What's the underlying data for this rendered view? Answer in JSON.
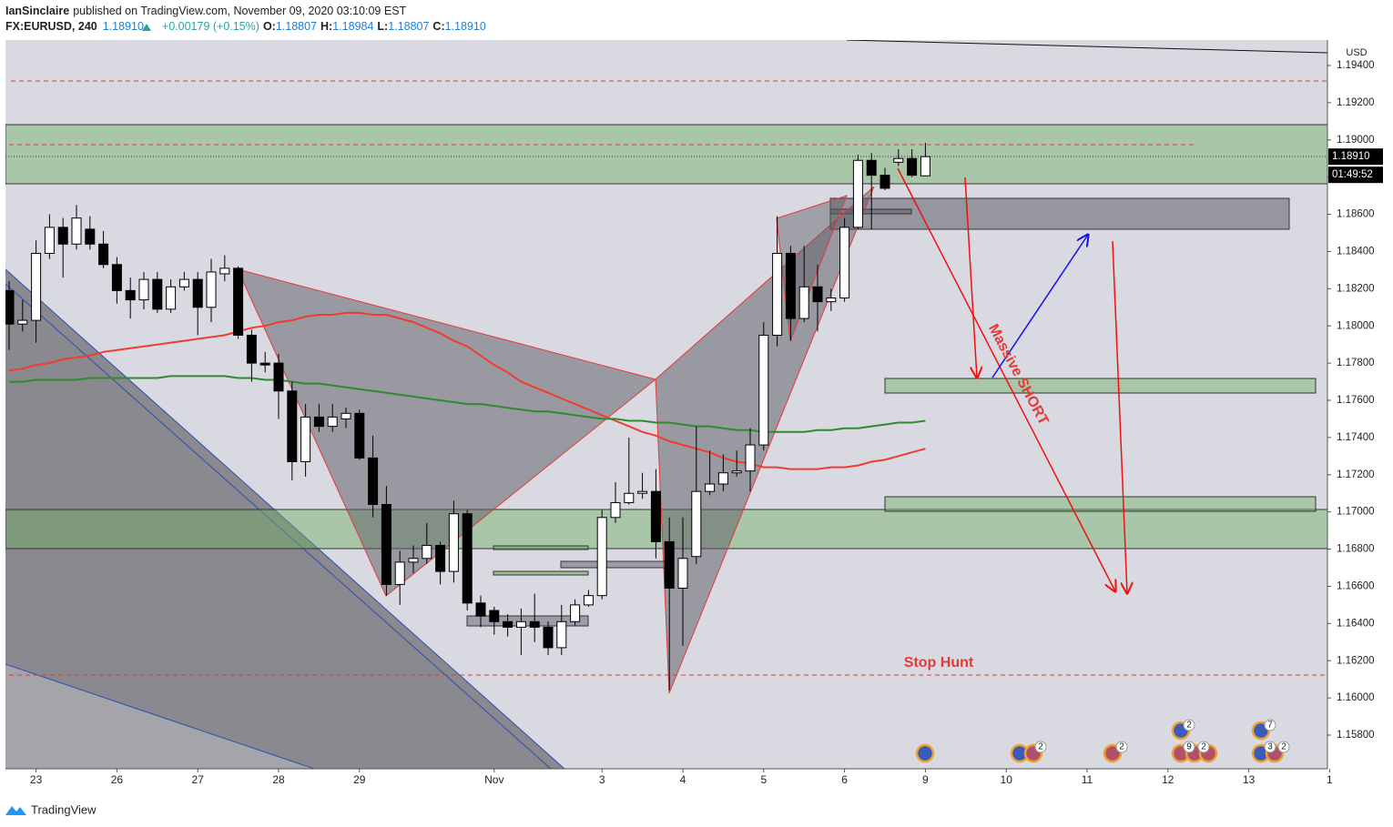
{
  "header": {
    "author": "IanSinclaire",
    "published": "published on TradingView.com, November 09, 2020 03:10:09 EST",
    "symbol": "FX:EURUSD, 240",
    "last": "1.18910",
    "change": "+0.00179 (+0.15%)",
    "ohlc": [
      {
        "key": "O:",
        "value": "1.18807"
      },
      {
        "key": "H:",
        "value": "1.18984"
      },
      {
        "key": "L:",
        "value": "1.18807"
      },
      {
        "key": "C:",
        "value": "1.18910"
      }
    ]
  },
  "chart_data": {
    "type": "candlestick",
    "currency": "USD",
    "categories": [
      null,
      null,
      "23",
      null,
      null,
      null,
      null,
      null,
      "26",
      null,
      null,
      null,
      null,
      null,
      "27",
      null,
      null,
      null,
      null,
      null,
      "28",
      null,
      null,
      null,
      null,
      null,
      "29",
      null,
      null,
      null,
      null,
      null,
      null,
      null,
      null,
      null,
      "Nov",
      null,
      null,
      null,
      null,
      null,
      null,
      null,
      "3",
      null,
      null,
      null,
      null,
      null,
      "4",
      null,
      null,
      null,
      null,
      null,
      "5",
      null,
      null,
      null,
      null,
      null,
      "6",
      null,
      null,
      null,
      null,
      null,
      "9",
      null,
      null,
      null,
      null,
      null,
      "10",
      null,
      null,
      null,
      null,
      null,
      "11",
      null,
      null,
      null,
      null,
      null,
      "12",
      null,
      null,
      null,
      null,
      null,
      "13",
      null,
      null,
      null,
      null,
      null,
      "1"
    ],
    "open": [
      1.1819,
      1.1801,
      1.1803,
      1.1839,
      1.1853,
      1.1844,
      1.1852,
      1.1844,
      1.1833,
      1.1819,
      1.1814,
      1.1825,
      1.1809,
      1.1821,
      1.1825,
      1.181,
      1.1828,
      1.1831,
      1.1795,
      1.178,
      1.178,
      1.1765,
      1.1727,
      1.1751,
      1.1746,
      1.175,
      1.1753,
      1.1729,
      1.1704,
      1.1661,
      1.1673,
      1.1675,
      1.1682,
      1.1668,
      1.1699,
      1.1651,
      1.1647,
      1.1641,
      1.1638,
      1.1641,
      1.1638,
      1.1627,
      1.1641,
      1.165,
      1.1655,
      1.1697,
      1.1705,
      1.171,
      1.1711,
      1.1684,
      1.1659,
      1.1676,
      1.1711,
      1.1715,
      1.1721,
      1.1722,
      1.1736,
      1.1795,
      1.1839,
      1.1804,
      1.1821,
      1.1813,
      1.1815,
      1.1853,
      1.1889,
      1.1881,
      1.1888,
      1.189,
      1.18807,
      null,
      null,
      null,
      null,
      null,
      null,
      null,
      null,
      null,
      null,
      null,
      null,
      null,
      null,
      null,
      null,
      null,
      null,
      null,
      null,
      null,
      null,
      null,
      null,
      null,
      null,
      null,
      null,
      null,
      null
    ],
    "high": [
      1.1824,
      1.1814,
      1.1846,
      1.186,
      1.1858,
      1.1865,
      1.1859,
      1.1851,
      1.1837,
      1.1826,
      1.1829,
      1.1829,
      1.1825,
      1.1829,
      1.1829,
      1.1836,
      1.1838,
      1.1832,
      1.1798,
      1.1786,
      1.1785,
      1.177,
      1.1758,
      1.1758,
      1.1758,
      1.1756,
      1.1755,
      1.1741,
      1.1714,
      1.1679,
      1.1682,
      1.1694,
      1.1684,
      1.1706,
      1.1701,
      1.1655,
      1.1649,
      1.1645,
      1.1648,
      1.1656,
      1.1641,
      1.165,
      1.1653,
      1.1658,
      1.1701,
      1.1716,
      1.174,
      1.1721,
      1.1723,
      1.1697,
      1.1697,
      1.1746,
      1.1733,
      1.1731,
      1.1733,
      1.1745,
      1.1802,
      1.1859,
      1.1843,
      1.1843,
      1.1833,
      1.182,
      1.1858,
      1.1892,
      1.1893,
      1.1885,
      1.1895,
      1.1895,
      1.18984,
      null,
      null,
      null,
      null,
      null,
      null,
      null,
      null,
      null,
      null,
      null,
      null,
      null,
      null,
      null,
      null,
      null,
      null,
      null,
      null,
      null,
      null,
      null,
      null,
      null,
      null,
      null,
      null,
      null,
      null
    ],
    "low": [
      1.1787,
      1.1797,
      1.1791,
      1.1836,
      1.1826,
      1.1841,
      1.1841,
      1.1831,
      1.1812,
      1.1804,
      1.1809,
      1.1807,
      1.1807,
      1.1819,
      1.1795,
      1.1802,
      1.1824,
      1.1793,
      1.177,
      1.1775,
      1.175,
      1.1717,
      1.1719,
      1.1743,
      1.1743,
      1.1745,
      1.1728,
      1.1697,
      1.1655,
      1.165,
      1.1667,
      1.1672,
      1.1661,
      1.1662,
      1.1647,
      1.1638,
      1.1634,
      1.1633,
      1.1623,
      1.163,
      1.1623,
      1.1623,
      1.1639,
      1.1649,
      1.1653,
      1.1694,
      1.1704,
      1.1707,
      1.1675,
      1.1604,
      1.1628,
      1.1672,
      1.1709,
      1.1711,
      1.1719,
      1.1711,
      1.1733,
      1.1789,
      1.1792,
      1.1802,
      1.1797,
      1.1808,
      1.1813,
      1.1852,
      1.1852,
      1.1873,
      1.1886,
      1.188,
      1.18807,
      null,
      null,
      null,
      null,
      null,
      null,
      null,
      null,
      null,
      null,
      null,
      null,
      null,
      null,
      null,
      null,
      null,
      null,
      null,
      null,
      null,
      null,
      null,
      null,
      null,
      null,
      null,
      null,
      null,
      null
    ],
    "close": [
      1.1801,
      1.1803,
      1.1839,
      1.1853,
      1.1844,
      1.1858,
      1.1844,
      1.1833,
      1.1819,
      1.1814,
      1.1825,
      1.1809,
      1.1821,
      1.1825,
      1.181,
      1.1829,
      1.1831,
      1.1795,
      1.178,
      1.1779,
      1.1765,
      1.1727,
      1.1751,
      1.1746,
      1.1751,
      1.1753,
      1.1729,
      1.1704,
      1.1661,
      1.1673,
      1.1675,
      1.1682,
      1.1668,
      1.1699,
      1.1651,
      1.1644,
      1.1641,
      1.1638,
      1.1641,
      1.1638,
      1.1627,
      1.1641,
      1.165,
      1.1655,
      1.1697,
      1.1705,
      1.171,
      1.1711,
      1.1684,
      1.1659,
      1.1675,
      1.1711,
      1.1715,
      1.1721,
      1.1722,
      1.1736,
      1.1795,
      1.1839,
      1.1804,
      1.1821,
      1.1813,
      1.1815,
      1.1853,
      1.1889,
      1.1881,
      1.1874,
      1.189,
      1.1881,
      1.1891,
      null,
      null,
      null,
      null,
      null,
      null,
      null,
      null,
      null,
      null,
      null,
      null,
      null,
      null,
      null,
      null,
      null,
      null,
      null,
      null,
      null,
      null,
      null,
      null,
      null,
      null,
      null,
      null,
      null,
      null
    ],
    "up_color": "#ffffff",
    "down_color": "#000000",
    "moving_averages": [
      {
        "color": "#f23b2f",
        "values": [
          1.1776,
          1.1777,
          1.1779,
          1.178,
          1.1782,
          1.1783,
          1.1784,
          1.1786,
          1.1787,
          1.1788,
          1.1789,
          1.179,
          1.1791,
          1.1792,
          1.1793,
          1.1794,
          1.1795,
          1.1797,
          1.1799,
          1.18,
          1.1802,
          1.1803,
          1.1805,
          1.1806,
          1.1806,
          1.1807,
          1.1807,
          1.1806,
          1.1806,
          1.1804,
          1.1802,
          1.1799,
          1.1796,
          1.1792,
          1.1789,
          1.1784,
          1.1779,
          1.1775,
          1.177,
          1.1767,
          1.1764,
          1.1761,
          1.1758,
          1.1755,
          1.1752,
          1.1749,
          1.1746,
          1.1743,
          1.1741,
          1.1738,
          1.1736,
          1.1734,
          1.1732,
          1.1729,
          1.1727,
          1.1726,
          1.1724,
          1.1724,
          1.1723,
          1.1723,
          1.1723,
          1.1724,
          1.1724,
          1.1725,
          1.1727,
          1.1728,
          1.173,
          1.1732,
          1.1734,
          null,
          null,
          null,
          null,
          null,
          null,
          null,
          null,
          null,
          null,
          null,
          null,
          null,
          null,
          null,
          null,
          null,
          null,
          null,
          null,
          null,
          null,
          null,
          null,
          null,
          null,
          null,
          null,
          null,
          null
        ]
      },
      {
        "color": "#2e8b2e",
        "values": [
          1.177,
          1.177,
          1.1771,
          1.1771,
          1.1771,
          1.1771,
          1.1772,
          1.1772,
          1.1772,
          1.1772,
          1.1772,
          1.1772,
          1.1773,
          1.1773,
          1.1773,
          1.1773,
          1.1773,
          1.1772,
          1.1772,
          1.1771,
          1.1771,
          1.177,
          1.1769,
          1.1769,
          1.1768,
          1.1767,
          1.1766,
          1.1765,
          1.1764,
          1.1763,
          1.1762,
          1.1761,
          1.176,
          1.1759,
          1.1758,
          1.1758,
          1.1757,
          1.1756,
          1.1755,
          1.1754,
          1.1754,
          1.1753,
          1.1752,
          1.1751,
          1.175,
          1.175,
          1.1749,
          1.1749,
          1.1748,
          1.1748,
          1.1747,
          1.1746,
          1.1746,
          1.1745,
          1.1744,
          1.1744,
          1.1743,
          1.1743,
          1.1743,
          1.1743,
          1.1744,
          1.1744,
          1.1745,
          1.1745,
          1.1746,
          1.1747,
          1.1748,
          1.1748,
          1.1749,
          null,
          null,
          null,
          null,
          null,
          null,
          null,
          null,
          null,
          null,
          null,
          null,
          null,
          null,
          null,
          null,
          null,
          null,
          null,
          null,
          null,
          null,
          null,
          null,
          null,
          null,
          null,
          null,
          null,
          null
        ]
      }
    ],
    "ylim": [
      1.15619,
      1.19537
    ],
    "yticks": [
      {
        "value": 1.158,
        "label": "1.15800"
      },
      {
        "value": 1.16,
        "label": "1.16000"
      },
      {
        "value": 1.162,
        "label": "1.16200"
      },
      {
        "value": 1.164,
        "label": "1.16400"
      },
      {
        "value": 1.166,
        "label": "1.16600"
      },
      {
        "value": 1.168,
        "label": "1.16800"
      },
      {
        "value": 1.17,
        "label": "1.17000"
      },
      {
        "value": 1.172,
        "label": "1.17200"
      },
      {
        "value": 1.174,
        "label": "1.17400"
      },
      {
        "value": 1.176,
        "label": "1.17600"
      },
      {
        "value": 1.178,
        "label": "1.17800"
      },
      {
        "value": 1.18,
        "label": "1.18000"
      },
      {
        "value": 1.182,
        "label": "1.18200"
      },
      {
        "value": 1.184,
        "label": "1.18400"
      },
      {
        "value": 1.186,
        "label": "1.18600"
      },
      {
        "value": 1.188,
        "label": "1.18800"
      },
      {
        "value": 1.19,
        "label": "1.19000"
      },
      {
        "value": 1.192,
        "label": "1.19200"
      },
      {
        "value": 1.194,
        "label": "1.19400"
      }
    ],
    "grid": false,
    "last_price": {
      "value": 1.1891,
      "label": "1.18910"
    },
    "countdown": "01:49:52",
    "annotations": {
      "short": "Massive SHORT",
      "stop": "Stop Hunt"
    },
    "event_badges": [
      "2",
      "2",
      "2",
      "9",
      "2",
      "7",
      "3",
      "2"
    ]
  },
  "footer": {
    "brand": "TradingView"
  }
}
